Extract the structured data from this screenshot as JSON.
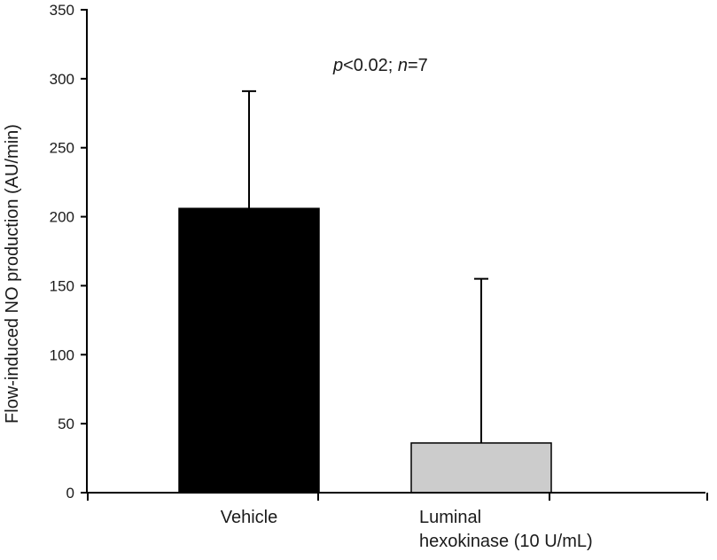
{
  "chart_data": {
    "type": "bar",
    "title": "",
    "xlabel": "",
    "ylabel": "Flow-induced NO production (AU/min)",
    "ylim": [
      0,
      350
    ],
    "yticks": [
      0,
      50,
      100,
      150,
      200,
      250,
      300,
      350
    ],
    "grid": false,
    "legend": "none",
    "categories": [
      [
        "Vehicle"
      ],
      [
        "Luminal",
        "hexokinase (10 U/mL)"
      ]
    ],
    "values": [
      206,
      36
    ],
    "error_upper": [
      291,
      155
    ],
    "bar_colors": [
      "#000000",
      "#cccccc"
    ],
    "annotation": {
      "p_symbol": "p",
      "p_text": "<0.02; ",
      "n_symbol": "n",
      "n_text": "=7"
    }
  }
}
